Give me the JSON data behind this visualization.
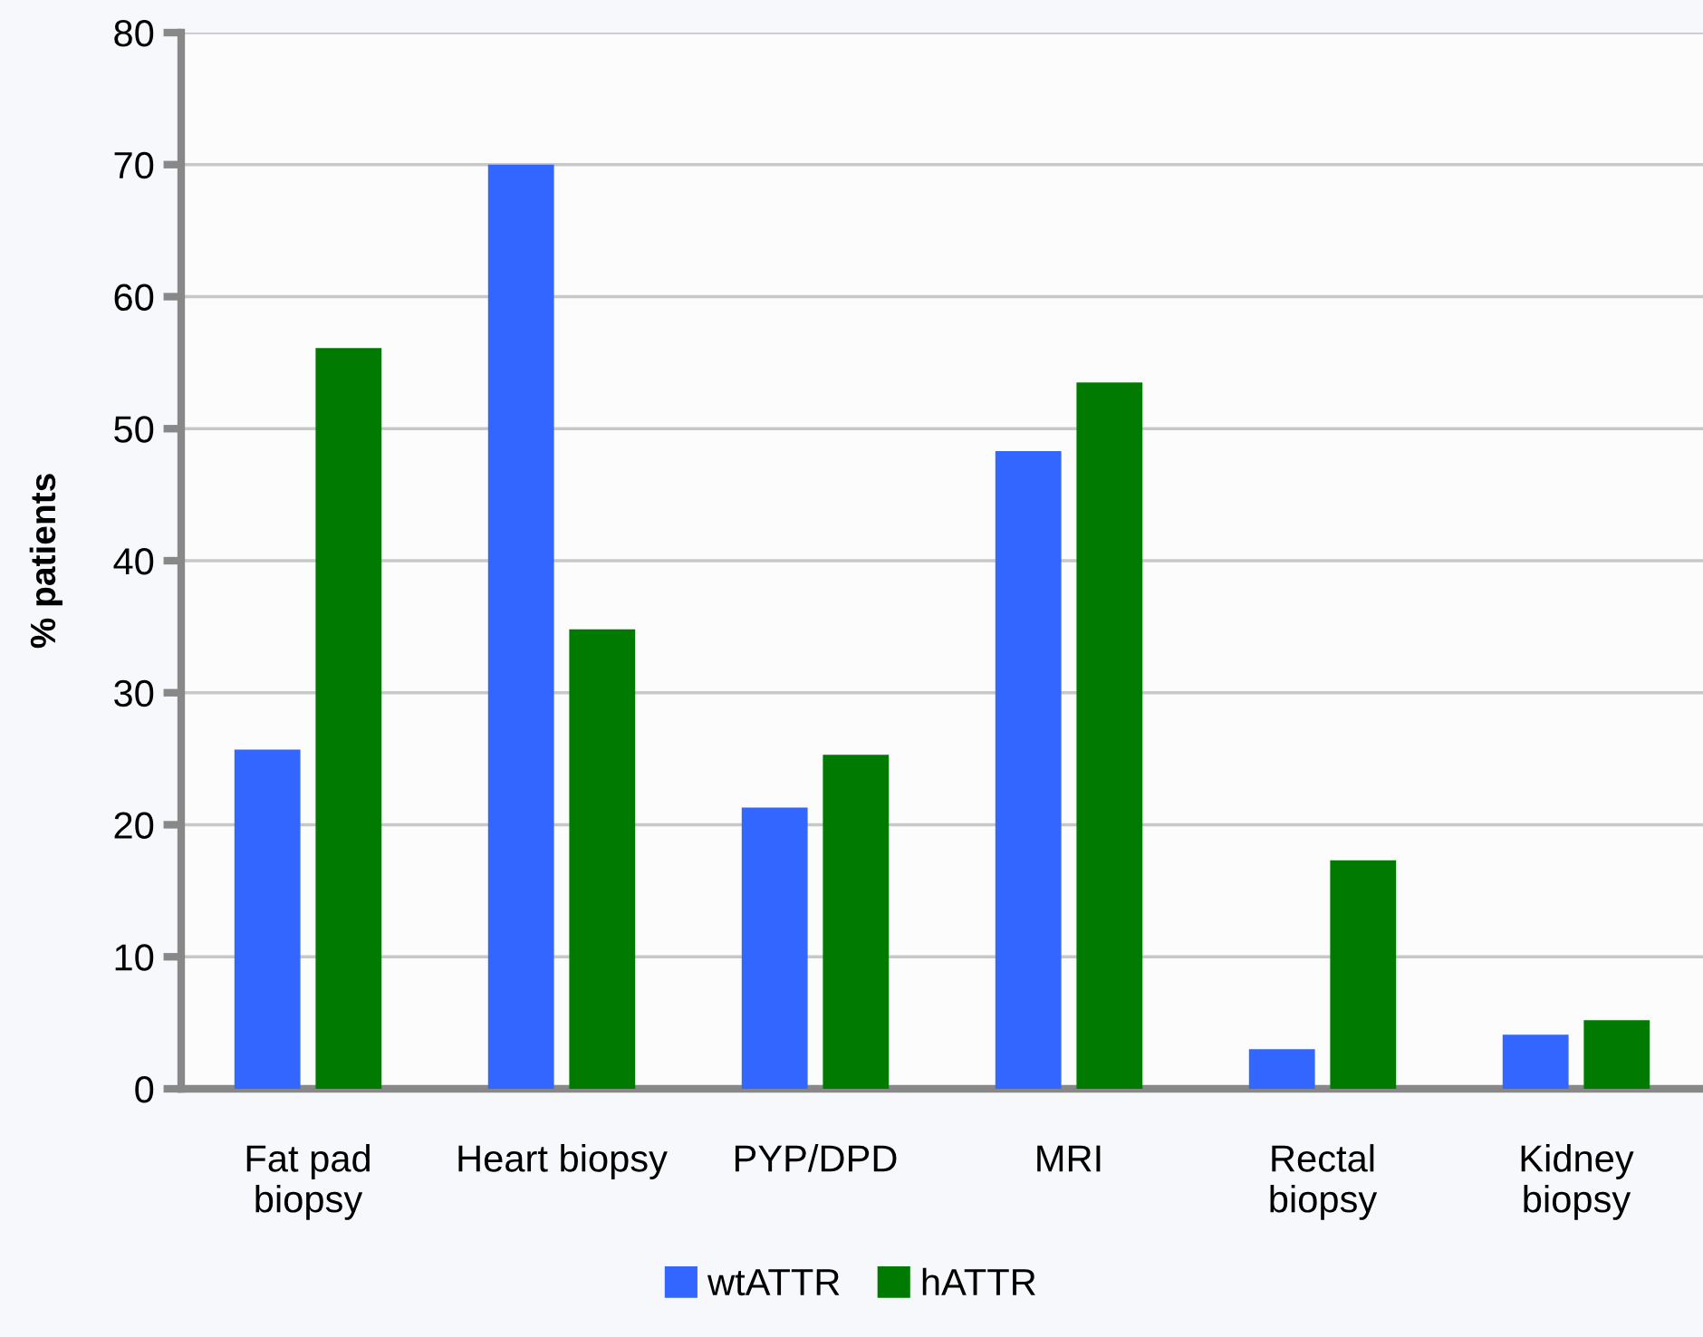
{
  "chart_data": {
    "type": "bar",
    "ylabel": "% patients",
    "categories": [
      "Fat pad\nbiopsy",
      "Heart biopsy",
      "PYP/DPD",
      "MRI",
      "Rectal\nbiopsy",
      "Kidney\nbiopsy"
    ],
    "series": [
      {
        "name": "wtATTR",
        "color": "#3366ff",
        "values": [
          25.7,
          70.0,
          21.3,
          48.3,
          3.0,
          4.1
        ]
      },
      {
        "name": "hATTR",
        "color": "#007a00",
        "values": [
          56.1,
          34.8,
          25.3,
          53.5,
          17.3,
          5.2
        ]
      }
    ],
    "ylim": [
      0,
      80
    ],
    "yticks": [
      0,
      10,
      20,
      30,
      40,
      50,
      60,
      70,
      80
    ],
    "grid": "y",
    "legend": "bottom"
  }
}
